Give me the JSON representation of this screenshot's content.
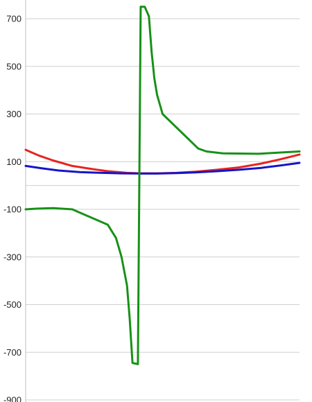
{
  "chart_data": {
    "type": "line",
    "title": "",
    "xlabel": "",
    "ylabel": "",
    "ylim": [
      -900,
      780
    ],
    "xlim": [
      0,
      1
    ],
    "grid": true,
    "legend": "none",
    "y_ticks": [
      {
        "value": 700,
        "label": "700"
      },
      {
        "value": 500,
        "label": "500"
      },
      {
        "value": 300,
        "label": "300"
      },
      {
        "value": 100,
        "label": "100"
      },
      {
        "value": 0,
        "label": ""
      },
      {
        "value": -100,
        "label": "-100"
      },
      {
        "value": -300,
        "label": "-300"
      },
      {
        "value": -500,
        "label": "-500"
      },
      {
        "value": -700,
        "label": "-700"
      },
      {
        "value": -900,
        "label": "-900"
      }
    ],
    "series": [
      {
        "color": "#e8231f",
        "points": [
          [
            0.0,
            150
          ],
          [
            0.05,
            125
          ],
          [
            0.1,
            105
          ],
          [
            0.17,
            82
          ],
          [
            0.25,
            68
          ],
          [
            0.3,
            60
          ],
          [
            0.37,
            53
          ],
          [
            0.42,
            51
          ],
          [
            0.48,
            51
          ],
          [
            0.55,
            53
          ],
          [
            0.62,
            58
          ],
          [
            0.7,
            66
          ],
          [
            0.78,
            76
          ],
          [
            0.86,
            92
          ],
          [
            0.93,
            110
          ],
          [
            1.0,
            130
          ]
        ]
      },
      {
        "color": "#1515c8",
        "points": [
          [
            0.0,
            82
          ],
          [
            0.06,
            72
          ],
          [
            0.12,
            63
          ],
          [
            0.2,
            56
          ],
          [
            0.28,
            53
          ],
          [
            0.35,
            51
          ],
          [
            0.42,
            50
          ],
          [
            0.48,
            50
          ],
          [
            0.55,
            52
          ],
          [
            0.62,
            55
          ],
          [
            0.7,
            60
          ],
          [
            0.78,
            66
          ],
          [
            0.86,
            74
          ],
          [
            0.93,
            84
          ],
          [
            1.0,
            95
          ]
        ]
      },
      {
        "color": "#179117",
        "points": [
          [
            0.0,
            -100
          ],
          [
            0.04,
            -97
          ],
          [
            0.1,
            -95
          ],
          [
            0.17,
            -100
          ],
          [
            0.3,
            -165
          ],
          [
            0.33,
            -220
          ],
          [
            0.35,
            -300
          ],
          [
            0.37,
            -420
          ],
          [
            0.38,
            -560
          ],
          [
            0.39,
            -745
          ],
          [
            0.41,
            -750
          ],
          [
            0.4201,
            750
          ],
          [
            0.435,
            750
          ],
          [
            0.45,
            710
          ],
          [
            0.46,
            560
          ],
          [
            0.47,
            450
          ],
          [
            0.48,
            380
          ],
          [
            0.5,
            300
          ],
          [
            0.63,
            155
          ],
          [
            0.66,
            143
          ],
          [
            0.72,
            135
          ],
          [
            0.85,
            133
          ],
          [
            1.0,
            143
          ]
        ]
      }
    ]
  }
}
